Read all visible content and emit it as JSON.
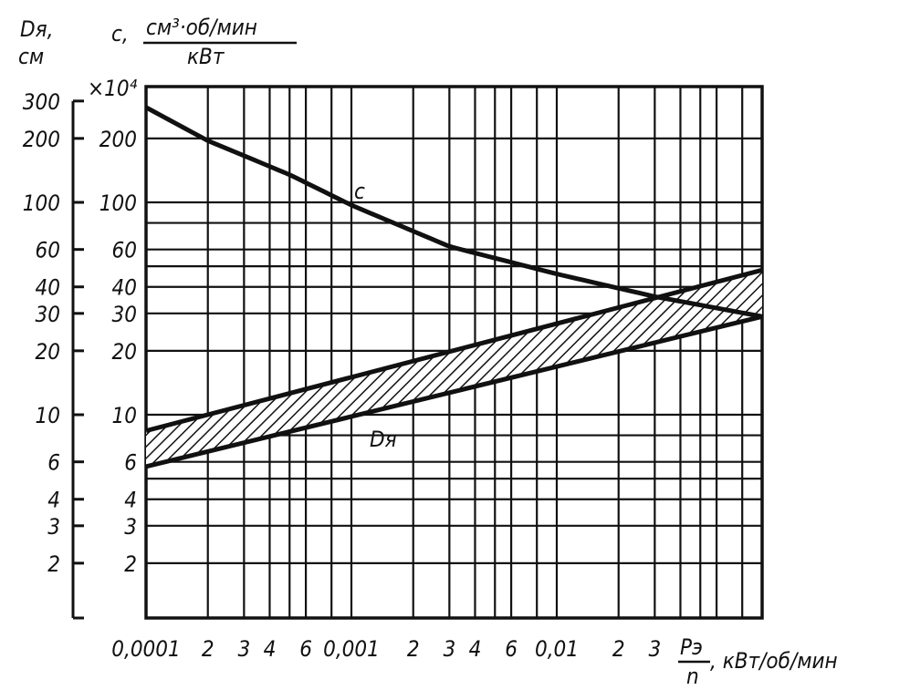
{
  "chart_data": {
    "type": "line",
    "title": "",
    "xlabel": "Pэ/n, кВт/об/мин",
    "xlabel_num": "Pэ",
    "xlabel_den": "n",
    "xlabel_unit": ", кВт/об/мин",
    "xscale": "log",
    "xlim": [
      0.0001,
      0.1
    ],
    "yscale": "log",
    "ylim": [
      1,
      350
    ],
    "ylabel_left": {
      "symbol": "Dя,",
      "unit": "см"
    },
    "ylabel_right": {
      "symbol": "c,",
      "unit_num": "см³·об/мин",
      "unit_den": "кВт",
      "multiplier": "×10⁴"
    },
    "grid": true,
    "x_ticks": [
      {
        "value": 0.0001,
        "label": "0,0001"
      },
      {
        "value": 0.0002,
        "label": "2"
      },
      {
        "value": 0.0003,
        "label": "3"
      },
      {
        "value": 0.0004,
        "label": "4"
      },
      {
        "value": 0.0006,
        "label": "6"
      },
      {
        "value": 0.001,
        "label": "0,001"
      },
      {
        "value": 0.002,
        "label": "2"
      },
      {
        "value": 0.003,
        "label": "3"
      },
      {
        "value": 0.004,
        "label": "4"
      },
      {
        "value": 0.006,
        "label": "6"
      },
      {
        "value": 0.01,
        "label": "0,01"
      },
      {
        "value": 0.02,
        "label": "2"
      },
      {
        "value": 0.03,
        "label": "3"
      }
    ],
    "y_ticks_left": [
      {
        "value": 300,
        "label": "300"
      },
      {
        "value": 200,
        "label": "200"
      },
      {
        "value": 100,
        "label": "100"
      },
      {
        "value": 60,
        "label": "60"
      },
      {
        "value": 40,
        "label": "40"
      },
      {
        "value": 30,
        "label": "30"
      },
      {
        "value": 20,
        "label": "20"
      },
      {
        "value": 10,
        "label": "10"
      },
      {
        "value": 6,
        "label": "6"
      },
      {
        "value": 4,
        "label": "4"
      },
      {
        "value": 3,
        "label": "3"
      },
      {
        "value": 2,
        "label": "2"
      }
    ],
    "y_ticks_right": [
      {
        "value": 200,
        "label": "200"
      },
      {
        "value": 100,
        "label": "100"
      },
      {
        "value": 60,
        "label": "60"
      },
      {
        "value": 40,
        "label": "40"
      },
      {
        "value": 30,
        "label": "30"
      },
      {
        "value": 20,
        "label": "20"
      },
      {
        "value": 10,
        "label": "10"
      },
      {
        "value": 6,
        "label": "6"
      },
      {
        "value": 4,
        "label": "4"
      },
      {
        "value": 3,
        "label": "3"
      },
      {
        "value": 2,
        "label": "2"
      }
    ],
    "series": [
      {
        "name": "c",
        "label": "c",
        "x": [
          0.0001,
          0.0002,
          0.0005,
          0.001,
          0.003,
          0.01,
          0.03,
          0.1
        ],
        "y": [
          280,
          195,
          135,
          97,
          62,
          46,
          36,
          29
        ]
      },
      {
        "name": "Dя upper",
        "x": [
          0.0001,
          0.1
        ],
        "y": [
          8.4,
          48
        ]
      },
      {
        "name": "Dя lower",
        "x": [
          0.0001,
          0.1
        ],
        "y": [
          5.7,
          29
        ]
      }
    ],
    "band": {
      "name": "Dя",
      "label": "Dя",
      "fill": "hatched"
    }
  }
}
